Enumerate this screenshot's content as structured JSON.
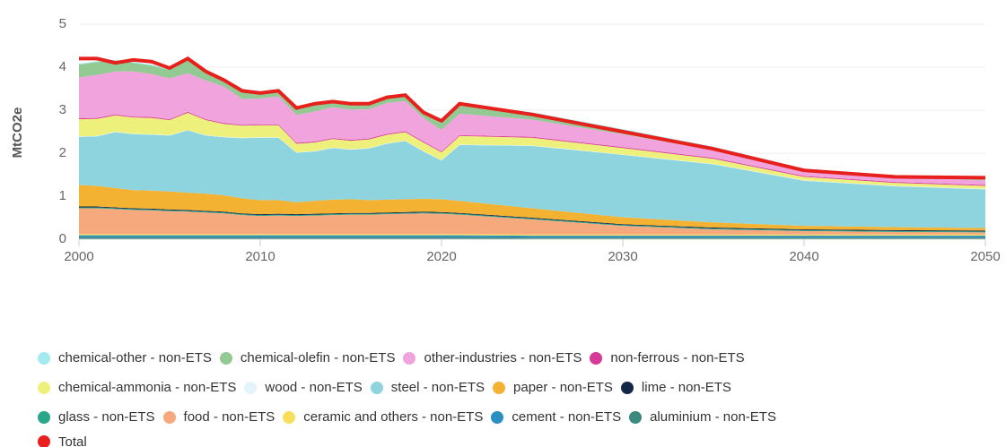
{
  "chart_data": {
    "type": "area",
    "stacked": true,
    "y_label": "MtCO2e",
    "x": [
      2000,
      2001,
      2002,
      2003,
      2004,
      2005,
      2006,
      2007,
      2008,
      2009,
      2010,
      2011,
      2012,
      2013,
      2014,
      2015,
      2016,
      2017,
      2018,
      2019,
      2020,
      2021,
      2025,
      2030,
      2035,
      2040,
      2045,
      2050
    ],
    "xlim": [
      2000,
      2050
    ],
    "xticks": [
      2000,
      2010,
      2020,
      2030,
      2040,
      2050
    ],
    "ylim": [
      0,
      5
    ],
    "yticks": [
      0,
      1,
      2,
      3,
      4,
      5
    ],
    "grid": true,
    "series": [
      {
        "name": "chemical-other - non-ETS",
        "color": "#a3e9f0",
        "values": [
          0.02,
          0.02,
          0.02,
          0.02,
          0.02,
          0.02,
          0.02,
          0.02,
          0.02,
          0.02,
          0.02,
          0.02,
          0.02,
          0.02,
          0.02,
          0.02,
          0.02,
          0.02,
          0.02,
          0.02,
          0.02,
          0.02,
          0.02,
          0.02,
          0.02,
          0.02,
          0.02,
          0.02
        ]
      },
      {
        "name": "chemical-olefin - non-ETS",
        "color": "#93c993",
        "values": [
          0.3,
          0.3,
          0.25,
          0.2,
          0.2,
          0.2,
          0.3,
          0.2,
          0.15,
          0.15,
          0.15,
          0.15,
          0.15,
          0.15,
          0.15,
          0.15,
          0.15,
          0.15,
          0.15,
          0.15,
          0.15,
          0.2,
          0.15,
          0.1,
          0.06,
          0.03,
          0.02,
          0.02
        ]
      },
      {
        "name": "other-industries - non-ETS",
        "color": "#f0a3dd",
        "values": [
          0.95,
          1.0,
          1.0,
          1.05,
          1.0,
          0.95,
          0.9,
          0.9,
          0.85,
          0.6,
          0.6,
          0.65,
          0.65,
          0.7,
          0.72,
          0.7,
          0.68,
          0.72,
          0.7,
          0.55,
          0.5,
          0.5,
          0.4,
          0.3,
          0.18,
          0.12,
          0.11,
          0.11
        ]
      },
      {
        "name": "non-ferrous - non-ETS",
        "color": "#d63a96",
        "values": [
          0.02,
          0.02,
          0.02,
          0.02,
          0.02,
          0.02,
          0.02,
          0.02,
          0.02,
          0.02,
          0.02,
          0.02,
          0.02,
          0.02,
          0.02,
          0.02,
          0.02,
          0.02,
          0.02,
          0.02,
          0.02,
          0.02,
          0.02,
          0.02,
          0.02,
          0.02,
          0.02,
          0.02
        ]
      },
      {
        "name": "chemical-ammonia - non-ETS",
        "color": "#eef07c",
        "values": [
          0.4,
          0.4,
          0.38,
          0.38,
          0.38,
          0.35,
          0.4,
          0.35,
          0.3,
          0.28,
          0.28,
          0.28,
          0.2,
          0.2,
          0.2,
          0.2,
          0.2,
          0.2,
          0.2,
          0.2,
          0.18,
          0.2,
          0.18,
          0.15,
          0.12,
          0.08,
          0.07,
          0.07
        ]
      },
      {
        "name": "wood - non-ETS",
        "color": "#e3f5fa",
        "values": [
          0.01,
          0.01,
          0.01,
          0.01,
          0.01,
          0.01,
          0.01,
          0.01,
          0.01,
          0.01,
          0.01,
          0.01,
          0.01,
          0.01,
          0.01,
          0.01,
          0.01,
          0.01,
          0.01,
          0.01,
          0.01,
          0.01,
          0.01,
          0.01,
          0.01,
          0.01,
          0.01,
          0.01
        ]
      },
      {
        "name": "steel - non-ETS",
        "color": "#8dd4de",
        "values": [
          1.12,
          1.15,
          1.3,
          1.3,
          1.3,
          1.3,
          1.45,
          1.35,
          1.35,
          1.4,
          1.45,
          1.45,
          1.15,
          1.15,
          1.2,
          1.15,
          1.2,
          1.3,
          1.35,
          1.1,
          0.9,
          1.3,
          1.45,
          1.45,
          1.35,
          1.05,
          0.95,
          0.9
        ]
      },
      {
        "name": "paper - non-ETS",
        "color": "#f4b232",
        "values": [
          0.5,
          0.48,
          0.45,
          0.42,
          0.42,
          0.42,
          0.4,
          0.4,
          0.38,
          0.35,
          0.33,
          0.32,
          0.28,
          0.3,
          0.32,
          0.32,
          0.3,
          0.3,
          0.3,
          0.3,
          0.3,
          0.28,
          0.22,
          0.16,
          0.12,
          0.08,
          0.07,
          0.06
        ]
      },
      {
        "name": "lime - non-ETS",
        "color": "#142746",
        "values": [
          0.02,
          0.02,
          0.02,
          0.02,
          0.02,
          0.02,
          0.02,
          0.02,
          0.02,
          0.02,
          0.02,
          0.02,
          0.02,
          0.02,
          0.02,
          0.02,
          0.02,
          0.02,
          0.02,
          0.02,
          0.02,
          0.02,
          0.02,
          0.02,
          0.02,
          0.02,
          0.02,
          0.02
        ]
      },
      {
        "name": "glass - non-ETS",
        "color": "#2aa68a",
        "values": [
          0.02,
          0.02,
          0.02,
          0.02,
          0.02,
          0.02,
          0.02,
          0.02,
          0.02,
          0.02,
          0.02,
          0.02,
          0.02,
          0.02,
          0.02,
          0.02,
          0.02,
          0.02,
          0.02,
          0.02,
          0.02,
          0.02,
          0.02,
          0.02,
          0.02,
          0.02,
          0.02,
          0.02
        ]
      },
      {
        "name": "food - non-ETS",
        "color": "#f6a97c",
        "values": [
          0.6,
          0.6,
          0.58,
          0.56,
          0.55,
          0.53,
          0.52,
          0.5,
          0.48,
          0.44,
          0.42,
          0.43,
          0.42,
          0.43,
          0.44,
          0.45,
          0.45,
          0.46,
          0.47,
          0.48,
          0.47,
          0.45,
          0.35,
          0.2,
          0.12,
          0.08,
          0.06,
          0.05
        ]
      },
      {
        "name": "ceramic and others - non-ETS",
        "color": "#f7df5e",
        "values": [
          0.03,
          0.03,
          0.03,
          0.03,
          0.03,
          0.03,
          0.03,
          0.03,
          0.03,
          0.03,
          0.03,
          0.03,
          0.03,
          0.03,
          0.03,
          0.03,
          0.03,
          0.03,
          0.03,
          0.03,
          0.03,
          0.03,
          0.03,
          0.03,
          0.03,
          0.03,
          0.03,
          0.03
        ]
      },
      {
        "name": "cement - non-ETS",
        "color": "#2b8fc2",
        "values": [
          0.04,
          0.04,
          0.04,
          0.04,
          0.04,
          0.04,
          0.04,
          0.04,
          0.04,
          0.04,
          0.04,
          0.04,
          0.04,
          0.04,
          0.04,
          0.04,
          0.04,
          0.04,
          0.04,
          0.04,
          0.04,
          0.04,
          0.04,
          0.04,
          0.04,
          0.04,
          0.04,
          0.04
        ]
      },
      {
        "name": "aluminium - non-ETS",
        "color": "#3a8a80",
        "values": [
          0.05,
          0.05,
          0.05,
          0.05,
          0.05,
          0.05,
          0.05,
          0.05,
          0.05,
          0.05,
          0.05,
          0.05,
          0.05,
          0.05,
          0.05,
          0.05,
          0.05,
          0.05,
          0.05,
          0.05,
          0.05,
          0.05,
          0.04,
          0.04,
          0.04,
          0.04,
          0.04,
          0.04
        ]
      },
      {
        "name": "Total",
        "color": "#e8201c",
        "type": "line",
        "values": [
          4.2,
          4.2,
          4.1,
          4.17,
          4.13,
          3.98,
          4.2,
          3.9,
          3.7,
          3.45,
          3.4,
          3.45,
          3.05,
          3.15,
          3.2,
          3.15,
          3.15,
          3.3,
          3.35,
          2.95,
          2.75,
          3.15,
          2.9,
          2.5,
          2.1,
          1.6,
          1.45,
          1.43
        ]
      }
    ]
  }
}
